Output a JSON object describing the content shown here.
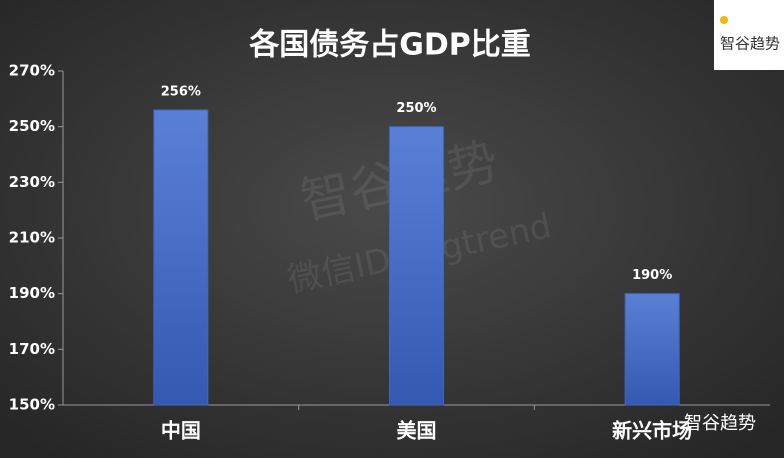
{
  "chart_data": {
    "type": "bar",
    "title": "各国债务占GDP比重",
    "categories": [
      "中国",
      "美国",
      "新兴市场"
    ],
    "values": [
      256,
      250,
      190
    ],
    "value_labels": [
      "256%",
      "250%",
      "190%"
    ],
    "color": "#3f67c0",
    "ylim": [
      150,
      270
    ],
    "yticks": [
      {
        "value": 150,
        "label": "150%"
      },
      {
        "value": 170,
        "label": "170%"
      },
      {
        "value": 190,
        "label": "190%"
      },
      {
        "value": 210,
        "label": "210%"
      },
      {
        "value": 230,
        "label": "230%"
      },
      {
        "value": 250,
        "label": "250%"
      },
      {
        "value": 270,
        "label": "270%"
      }
    ],
    "grid": false
  },
  "watermarks": {
    "main": "智谷趋势",
    "wechat": "微信ID：zgtrend",
    "logo": "智谷趋势",
    "footer": "智谷趋势"
  }
}
